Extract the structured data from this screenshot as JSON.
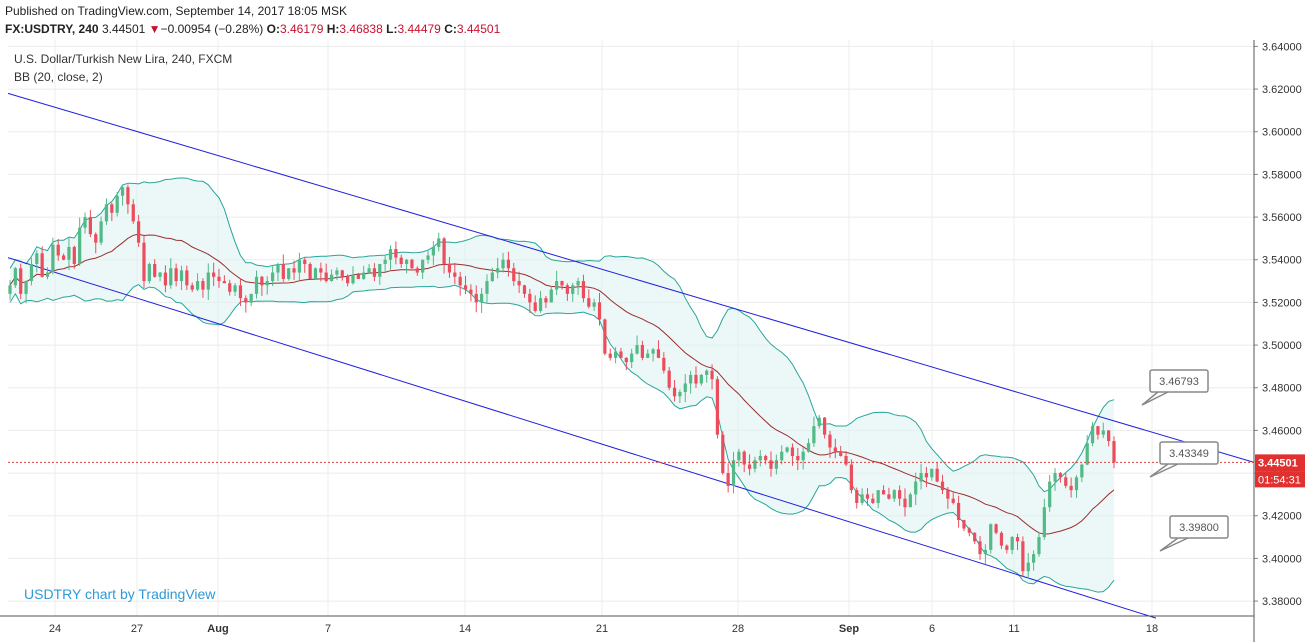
{
  "header": {
    "published": "Published on TradingView.com, September 14, 2017 18:05 MSK",
    "symbol": "FX:USDTRY, 240",
    "last": "3.44501",
    "change_arrow": "▼",
    "change": "−0.00954 (−0.28%)",
    "o_label": "O:",
    "o_value": "3.46179",
    "h_label": "H:",
    "h_value": "3.46838",
    "l_label": "L:",
    "l_value": "3.44479",
    "c_label": "C:",
    "c_value": "3.44501"
  },
  "legend": {
    "title": "U.S. Dollar/Turkish New Lira, 240, FXCM",
    "indicator": "BB (20, close, 2)"
  },
  "watermark": "USDTRY chart by TradingView",
  "colors": {
    "up": "#53b987",
    "down": "#eb4d5c",
    "bb_band": "#26a69a",
    "bb_fill": "#e0f2f1",
    "basis": "#9c2d2d",
    "channel": "#2020e0",
    "grid": "#ececec",
    "price_line": "#e04040",
    "price_tag_bg": "#e03030",
    "watermark": "#2f9ad6"
  },
  "chart_data": {
    "type": "candlestick",
    "yaxis": {
      "ticks": [
        "3.38000",
        "3.40000",
        "3.42000",
        "3.44000",
        "3.46000",
        "3.48000",
        "3.50000",
        "3.52000",
        "3.54000",
        "3.56000",
        "3.58000",
        "3.60000",
        "3.62000",
        "3.64000"
      ],
      "range": [
        3.372,
        3.643
      ]
    },
    "xaxis": {
      "tick_labels": [
        "24",
        "27",
        "Aug",
        "7",
        "14",
        "21",
        "28",
        "Sep",
        "6",
        "11",
        "18"
      ]
    },
    "current_price": "3.44501",
    "countdown": "01:54:31",
    "callouts": [
      "3.46793",
      "3.43349",
      "3.39800"
    ],
    "bollinger_bands": {
      "period": 20,
      "source": "close",
      "stddev": 2
    },
    "trend_channel": {
      "upper": {
        "from": 3.618,
        "to": 3.445
      },
      "lower": {
        "from": 3.541,
        "to": 3.372
      }
    },
    "close_series": [
      3.528,
      3.536,
      3.524,
      3.53,
      3.538,
      3.543,
      3.532,
      3.534,
      3.547,
      3.542,
      3.54,
      3.546,
      3.538,
      3.555,
      3.56,
      3.552,
      3.548,
      3.558,
      3.566,
      3.562,
      3.57,
      3.574,
      3.566,
      3.558,
      3.548,
      3.53,
      3.538,
      3.532,
      3.534,
      3.528,
      3.536,
      3.53,
      3.535,
      3.528,
      3.526,
      3.53,
      3.526,
      3.534,
      3.532,
      3.53,
      3.529,
      3.525,
      3.528,
      3.522,
      3.52,
      3.524,
      3.532,
      3.528,
      3.53,
      3.534,
      3.538,
      3.531,
      3.536,
      3.534,
      3.54,
      3.538,
      3.531,
      3.536,
      3.534,
      3.53,
      3.533,
      3.535,
      3.532,
      3.529,
      3.533,
      3.531,
      3.534,
      3.536,
      3.532,
      3.538,
      3.54,
      3.545,
      3.541,
      3.538,
      3.54,
      3.536,
      3.534,
      3.54,
      3.542,
      3.546,
      3.55,
      3.538,
      3.534,
      3.532,
      3.528,
      3.526,
      3.524,
      3.52,
      3.524,
      3.53,
      3.534,
      3.536,
      3.54,
      3.536,
      3.53,
      3.528,
      3.524,
      3.52,
      3.516,
      3.522,
      3.52,
      3.526,
      3.53,
      3.528,
      3.524,
      3.528,
      3.53,
      3.522,
      3.518,
      3.52,
      3.512,
      3.496,
      3.494,
      3.497,
      3.494,
      3.492,
      3.496,
      3.5,
      3.494,
      3.496,
      3.498,
      3.494,
      3.488,
      3.48,
      3.476,
      3.478,
      3.482,
      3.486,
      3.482,
      3.486,
      3.488,
      3.484,
      3.458,
      3.44,
      3.434,
      3.446,
      3.45,
      3.444,
      3.442,
      3.446,
      3.448,
      3.446,
      3.442,
      3.446,
      3.45,
      3.452,
      3.448,
      3.446,
      3.45,
      3.454,
      3.462,
      3.466,
      3.458,
      3.452,
      3.45,
      3.448,
      3.444,
      3.432,
      3.426,
      3.43,
      3.428,
      3.426,
      3.432,
      3.43,
      3.428,
      3.432,
      3.428,
      3.424,
      3.43,
      3.436,
      3.44,
      3.438,
      3.442,
      3.436,
      3.432,
      3.428,
      3.426,
      3.418,
      3.414,
      3.412,
      3.408,
      3.402,
      3.404,
      3.416,
      3.412,
      3.406,
      3.404,
      3.41,
      3.408,
      3.394,
      3.398,
      3.402,
      3.41,
      3.424,
      3.436,
      3.44,
      3.438,
      3.434,
      3.432,
      3.438,
      3.444,
      3.454,
      3.462,
      3.458,
      3.46,
      3.455,
      3.445
    ]
  }
}
